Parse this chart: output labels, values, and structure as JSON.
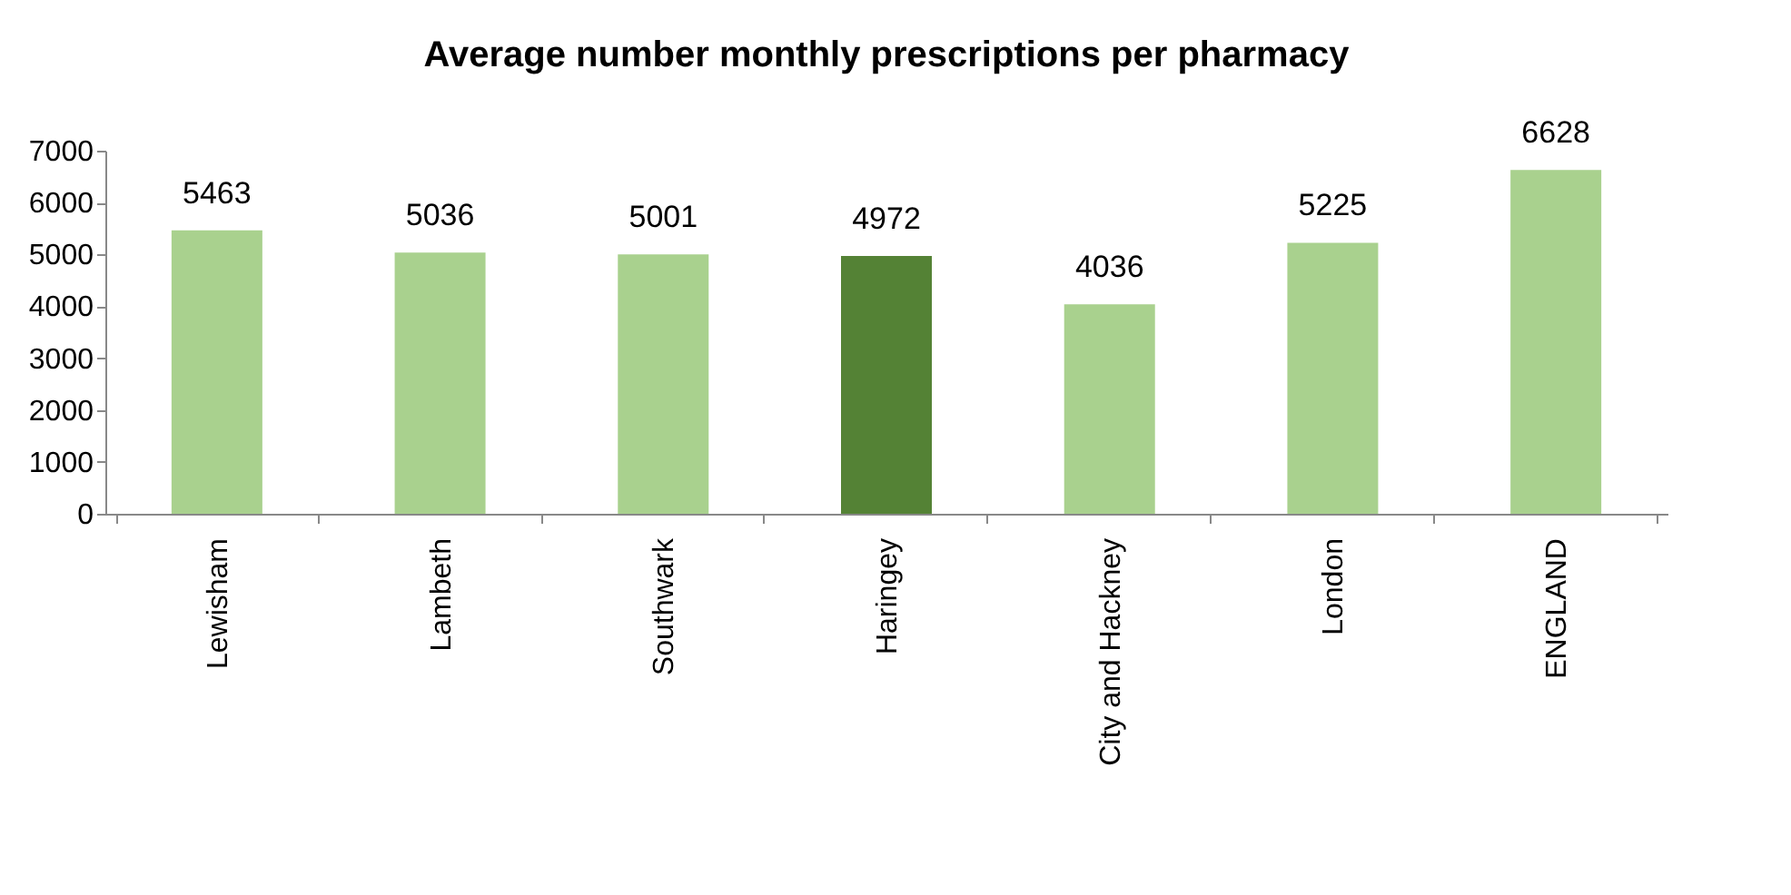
{
  "chart_data": {
    "type": "bar",
    "title": "Average number monthly prescriptions per pharmacy",
    "categories": [
      "Lewisham",
      "Lambeth",
      "Southwark",
      "Haringey",
      "City and Hackney",
      "London",
      "ENGLAND"
    ],
    "values": [
      5463,
      5036,
      5001,
      4972,
      4036,
      5225,
      6628
    ],
    "colors": [
      "#a9d18e",
      "#a9d18e",
      "#a9d18e",
      "#548235",
      "#a9d18e",
      "#a9d18e",
      "#a9d18e"
    ],
    "ylim": [
      0,
      7000
    ],
    "yticks": [
      0,
      1000,
      2000,
      3000,
      4000,
      5000,
      6000,
      7000
    ],
    "data_labels": true,
    "grid": false
  }
}
